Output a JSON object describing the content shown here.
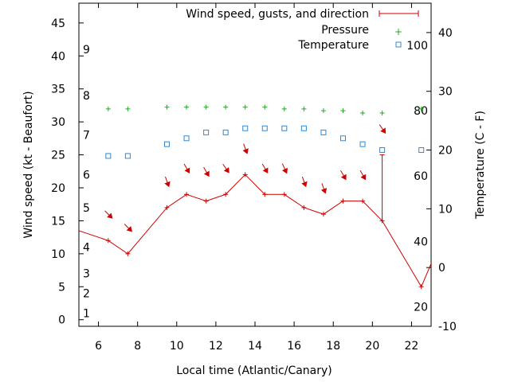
{
  "chart_data": {
    "type": "line",
    "xlabel": "Local time (Atlantic/Canary)",
    "ylabel_left": "Wind speed (kt - Beaufort)",
    "ylabel_right": "Temperature (C - F)",
    "xlim": [
      5,
      23
    ],
    "ylim": [
      -1,
      48
    ],
    "y2lim": [
      -10,
      45
    ],
    "x_ticks": [
      6,
      8,
      10,
      12,
      14,
      16,
      18,
      20,
      22
    ],
    "y_ticks": [
      0,
      5,
      10,
      15,
      20,
      25,
      30,
      35,
      40,
      45
    ],
    "y2_ticks": [
      -10,
      0,
      10,
      20,
      30,
      40
    ],
    "beaufort_labels": [
      {
        "label": "1",
        "kt": 1
      },
      {
        "label": "2",
        "kt": 4
      },
      {
        "label": "3",
        "kt": 7
      },
      {
        "label": "4",
        "kt": 11
      },
      {
        "label": "5",
        "kt": 17
      },
      {
        "label": "6",
        "kt": 22
      },
      {
        "label": "7",
        "kt": 28
      },
      {
        "label": "8",
        "kt": 34
      },
      {
        "label": "9",
        "kt": 41
      }
    ],
    "fahrenheit_labels": [
      {
        "label": "20",
        "c": -6.7
      },
      {
        "label": "40",
        "c": 4.4
      },
      {
        "label": "60",
        "c": 15.6
      },
      {
        "label": "80",
        "c": 26.7
      },
      {
        "label": "100",
        "c": 37.8
      }
    ],
    "legend": {
      "placement": "top-right",
      "wind": "Wind speed, gusts, and direction",
      "pressure": "Pressure",
      "temperature": "Temperature"
    },
    "colors": {
      "wind": "#cc0000",
      "pressure": "#22aa22",
      "temperature": "#3388cc"
    },
    "series": [
      {
        "name": "Wind speed, gusts, and direction",
        "x": [
          4.5,
          6.5,
          7.5,
          9.5,
          10.5,
          11.5,
          12.5,
          13.5,
          14.5,
          15.5,
          16.5,
          17.5,
          18.5,
          19.5,
          20.5,
          22.5,
          23.5
        ],
        "y": [
          14,
          12,
          10,
          17,
          19,
          18,
          19,
          22,
          19,
          19,
          17,
          16,
          18,
          18,
          15,
          5,
          12
        ],
        "gust": {
          "x": 20.5,
          "from": 15,
          "to": 25
        }
      },
      {
        "name": "Pressure",
        "x": [
          6.5,
          7.5,
          9.5,
          10.5,
          11.5,
          12.5,
          13.5,
          14.5,
          15.5,
          16.5,
          17.5,
          18.5,
          19.5,
          20.5,
          22.5
        ],
        "y2": [
          27,
          27,
          27.3,
          27.3,
          27.3,
          27.3,
          27.3,
          27.3,
          27,
          27,
          26.7,
          26.7,
          26.3,
          26.3,
          27
        ]
      },
      {
        "name": "Temperature",
        "x": [
          6.5,
          7.5,
          9.5,
          10.5,
          11.5,
          12.5,
          13.5,
          14.5,
          15.5,
          16.5,
          17.5,
          18.5,
          19.5,
          20.5,
          22.5
        ],
        "y2": [
          19,
          19,
          21,
          22,
          23,
          23,
          23.7,
          23.7,
          23.7,
          23.7,
          23,
          22,
          21,
          20,
          20
        ]
      }
    ],
    "direction_arrows": [
      {
        "x": 6.5,
        "kt": 16,
        "angle": 45
      },
      {
        "x": 7.5,
        "kt": 14,
        "angle": 45
      },
      {
        "x": 9.5,
        "kt": 21,
        "angle": 20
      },
      {
        "x": 10.5,
        "kt": 23,
        "angle": 30
      },
      {
        "x": 11.5,
        "kt": 22.5,
        "angle": 30
      },
      {
        "x": 12.5,
        "kt": 23,
        "angle": 35
      },
      {
        "x": 13.5,
        "kt": 26,
        "angle": 20
      },
      {
        "x": 14.5,
        "kt": 23,
        "angle": 30
      },
      {
        "x": 15.5,
        "kt": 23,
        "angle": 25
      },
      {
        "x": 16.5,
        "kt": 21,
        "angle": 20
      },
      {
        "x": 17.5,
        "kt": 20,
        "angle": 20
      },
      {
        "x": 18.5,
        "kt": 22,
        "angle": 30
      },
      {
        "x": 19.5,
        "kt": 22,
        "angle": 30
      },
      {
        "x": 20.5,
        "kt": 29,
        "angle": 35
      }
    ]
  }
}
